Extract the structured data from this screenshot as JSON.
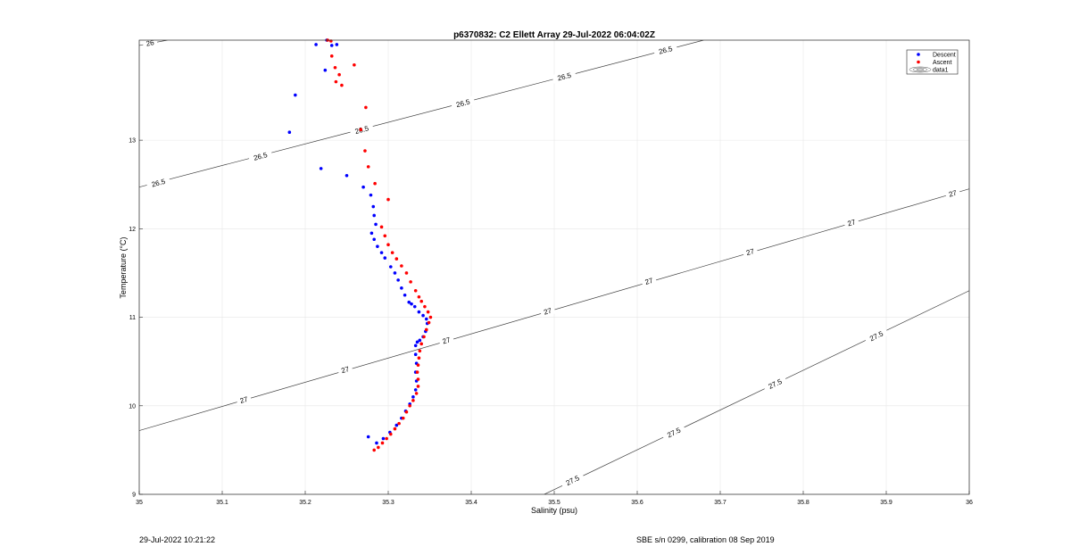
{
  "chart_data": {
    "type": "scatter",
    "title": "p6370832: C2 Ellett Array 29-Jul-2022 06:04:02Z",
    "xlabel": "Salinity (psu)",
    "ylabel": "Temperature (°C)",
    "xlim": [
      35,
      36
    ],
    "ylim": [
      9,
      14.13
    ],
    "grid": true,
    "legend_position": "top-right",
    "xticks": [
      "35",
      "35.1",
      "35.2",
      "35.3",
      "35.4",
      "35.5",
      "35.6",
      "35.7",
      "35.8",
      "35.9",
      "36"
    ],
    "yticks": [
      "9",
      "10",
      "11",
      "12",
      "13"
    ],
    "legend": [
      "Descent",
      "Ascent",
      "data1"
    ],
    "contours": [
      {
        "label": "26",
        "points": [
          [
            35.0,
            14.07
          ],
          [
            35.034,
            14.13
          ]
        ],
        "label_at": [
          [
            35.013,
            14.1
          ]
        ]
      },
      {
        "label": "26.5",
        "points": [
          [
            35.0,
            12.47
          ],
          [
            35.68,
            14.13
          ]
        ],
        "label_at": [
          [
            35.023,
            12.52
          ],
          [
            35.146,
            12.82
          ],
          [
            35.268,
            13.12
          ],
          [
            35.39,
            13.42
          ],
          [
            35.512,
            13.72
          ],
          [
            35.634,
            14.02
          ]
        ]
      },
      {
        "label": "27",
        "points": [
          [
            35.0,
            9.72
          ],
          [
            36.0,
            12.45
          ]
        ],
        "label_at": [
          [
            35.126,
            10.07
          ],
          [
            35.248,
            10.41
          ],
          [
            35.37,
            10.74
          ],
          [
            35.492,
            11.07
          ],
          [
            35.614,
            11.41
          ],
          [
            35.736,
            11.74
          ],
          [
            35.858,
            12.07
          ],
          [
            35.98,
            12.4
          ]
        ]
      },
      {
        "label": "27.5",
        "points": [
          [
            35.488,
            9.0
          ],
          [
            36.0,
            11.3
          ]
        ],
        "label_at": [
          [
            35.522,
            9.16
          ],
          [
            35.644,
            9.7
          ],
          [
            35.766,
            10.25
          ],
          [
            35.888,
            10.79
          ]
        ]
      }
    ],
    "series": [
      {
        "name": "Descent",
        "color": "#0000ff",
        "points": [
          [
            35.276,
            9.65
          ],
          [
            35.286,
            9.58
          ],
          [
            35.294,
            9.63
          ],
          [
            35.302,
            9.7
          ],
          [
            35.31,
            9.78
          ],
          [
            35.316,
            9.86
          ],
          [
            35.321,
            9.94
          ],
          [
            35.326,
            10.02
          ],
          [
            35.33,
            10.1
          ],
          [
            35.333,
            10.18
          ],
          [
            35.334,
            10.28
          ],
          [
            35.333,
            10.38
          ],
          [
            35.334,
            10.48
          ],
          [
            35.333,
            10.58
          ],
          [
            35.333,
            10.68
          ],
          [
            35.335,
            10.72
          ],
          [
            35.338,
            10.74
          ],
          [
            35.342,
            10.78
          ],
          [
            35.345,
            10.84
          ],
          [
            35.347,
            10.93
          ],
          [
            35.346,
            10.98
          ],
          [
            35.342,
            11.02
          ],
          [
            35.337,
            11.06
          ],
          [
            35.332,
            11.12
          ],
          [
            35.328,
            11.15
          ],
          [
            35.325,
            11.17
          ],
          [
            35.32,
            11.25
          ],
          [
            35.316,
            11.33
          ],
          [
            35.312,
            11.42
          ],
          [
            35.308,
            11.5
          ],
          [
            35.303,
            11.57
          ],
          [
            35.296,
            11.67
          ],
          [
            35.292,
            11.73
          ],
          [
            35.287,
            11.8
          ],
          [
            35.283,
            11.88
          ],
          [
            35.28,
            11.95
          ],
          [
            35.285,
            12.05
          ],
          [
            35.283,
            12.15
          ],
          [
            35.282,
            12.25
          ],
          [
            35.279,
            12.38
          ],
          [
            35.27,
            12.47
          ],
          [
            35.25,
            12.6
          ],
          [
            35.219,
            12.68
          ],
          [
            35.181,
            13.09
          ],
          [
            35.188,
            13.51
          ],
          [
            35.224,
            13.79
          ],
          [
            35.213,
            14.08
          ],
          [
            35.226,
            14.13
          ],
          [
            35.232,
            14.07
          ],
          [
            35.238,
            14.08
          ]
        ]
      },
      {
        "name": "Ascent",
        "color": "#ff0000",
        "points": [
          [
            35.283,
            9.5
          ],
          [
            35.288,
            9.53
          ],
          [
            35.293,
            9.58
          ],
          [
            35.298,
            9.63
          ],
          [
            35.303,
            9.68
          ],
          [
            35.308,
            9.74
          ],
          [
            35.313,
            9.8
          ],
          [
            35.318,
            9.86
          ],
          [
            35.322,
            9.93
          ],
          [
            35.326,
            10.0
          ],
          [
            35.33,
            10.06
          ],
          [
            35.334,
            10.14
          ],
          [
            35.336,
            10.22
          ],
          [
            35.336,
            10.3
          ],
          [
            35.335,
            10.38
          ],
          [
            35.336,
            10.46
          ],
          [
            35.337,
            10.54
          ],
          [
            35.338,
            10.62
          ],
          [
            35.34,
            10.7
          ],
          [
            35.343,
            10.78
          ],
          [
            35.346,
            10.86
          ],
          [
            35.349,
            10.94
          ],
          [
            35.351,
            11.0
          ],
          [
            35.348,
            11.06
          ],
          [
            35.344,
            11.12
          ],
          [
            35.34,
            11.18
          ],
          [
            35.337,
            11.23
          ],
          [
            35.333,
            11.3
          ],
          [
            35.327,
            11.4
          ],
          [
            35.322,
            11.5
          ],
          [
            35.316,
            11.58
          ],
          [
            35.31,
            11.66
          ],
          [
            35.305,
            11.73
          ],
          [
            35.3,
            11.82
          ],
          [
            35.296,
            11.92
          ],
          [
            35.292,
            12.02
          ],
          [
            35.3,
            12.33
          ],
          [
            35.284,
            12.51
          ],
          [
            35.276,
            12.7
          ],
          [
            35.272,
            12.88
          ],
          [
            35.267,
            13.12
          ],
          [
            35.273,
            13.37
          ],
          [
            35.237,
            13.66
          ],
          [
            35.236,
            13.82
          ],
          [
            35.232,
            13.95
          ],
          [
            35.227,
            14.13
          ],
          [
            35.231,
            14.12
          ],
          [
            35.259,
            13.85
          ],
          [
            35.241,
            13.74
          ],
          [
            35.244,
            13.62
          ]
        ]
      }
    ]
  },
  "footer": {
    "timestamp": "29-Jul-2022 10:21:22",
    "calibration": "SBE s/n 0299, calibration 08 Sep 2019"
  }
}
